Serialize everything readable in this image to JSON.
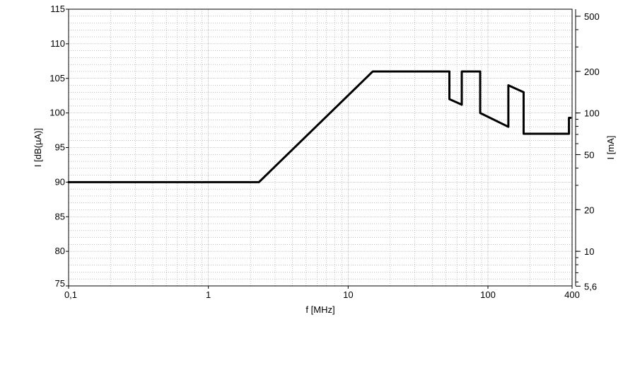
{
  "chart_data": {
    "type": "line",
    "xlabel": "f [MHz]",
    "ylabel": "I [dB(µA)]",
    "y2label": "I [mA]",
    "xscale": "log",
    "xlim": [
      0.1,
      400
    ],
    "ylim": [
      75,
      115
    ],
    "grid": true,
    "x_tick_labels": [
      "0,1",
      "1",
      "10",
      "100",
      "400"
    ],
    "x_tick_values": [
      0.1,
      1,
      10,
      100,
      400
    ],
    "y_tick_labels": [
      "75",
      "80",
      "85",
      "90",
      "95",
      "100",
      "105",
      "110",
      "115"
    ],
    "y_tick_values": [
      75,
      80,
      85,
      90,
      95,
      100,
      105,
      110,
      115
    ],
    "y2_tick_labels": [
      "5,6",
      "10",
      "20",
      "50",
      "100",
      "200",
      "500"
    ],
    "y2_tick_values_mA": [
      5.6,
      10,
      20,
      50,
      100,
      200,
      500
    ],
    "series": [
      {
        "color": "#000000",
        "x": [
          0.1,
          2.3,
          15,
          53,
          53,
          65,
          65,
          88,
          88,
          140,
          140,
          180,
          180,
          380,
          380,
          390
        ],
        "y": [
          90,
          90,
          106,
          106,
          102,
          101.2,
          106,
          106,
          100,
          98,
          104,
          103,
          97,
          97,
          99.3,
          99.3
        ]
      }
    ]
  }
}
